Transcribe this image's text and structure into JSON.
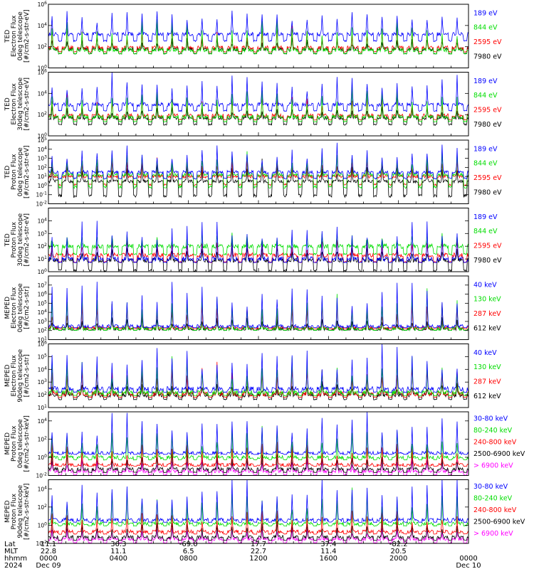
{
  "chart_data": [
    {
      "type": "line",
      "ylabel": [
        "TED",
        "Electron Flux",
        "0deg telescope",
        "[#/cm2-s-str-eV]"
      ],
      "ylim": [
        1,
        1000000
      ],
      "yscale": "log",
      "ytick_labels": [
        "10^0",
        "10^2",
        "10^4",
        "10^6"
      ],
      "series": [
        {
          "name": "7980 eV",
          "color": "#000000",
          "base": 60,
          "peak": 600,
          "floor": 20
        },
        {
          "name": "2595 eV",
          "color": "#ff0000",
          "base": 80,
          "peak": 5000,
          "floor": 30
        },
        {
          "name": "844 eV",
          "color": "#00dd00",
          "base": 50,
          "peak": 20000,
          "floor": 20
        },
        {
          "name": "189 eV",
          "color": "#0000ff",
          "base": 1500,
          "peak": 300000,
          "floor": 300
        }
      ]
    },
    {
      "type": "line",
      "ylabel": [
        "TED",
        "Electron Flux",
        "30deg telescope",
        "[#/cm2-s-str-eV]"
      ],
      "ylim": [
        1,
        1000000
      ],
      "yscale": "log",
      "ytick_labels": [
        "10^0",
        "10^2",
        "10^4",
        "10^6"
      ],
      "series": [
        {
          "name": "7980 eV",
          "color": "#000000",
          "base": 50,
          "peak": 500,
          "floor": 10
        },
        {
          "name": "2595 eV",
          "color": "#ff0000",
          "base": 80,
          "peak": 5000,
          "floor": 30
        },
        {
          "name": "844 eV",
          "color": "#00dd00",
          "base": 60,
          "peak": 20000,
          "floor": 20
        },
        {
          "name": "189 eV",
          "color": "#0000ff",
          "base": 900,
          "peak": 300000,
          "floor": 200
        }
      ]
    },
    {
      "type": "line",
      "ylabel": [
        "TED",
        "Proton Flux",
        "0deg telescope",
        "[#/cm2-s-str-eV]"
      ],
      "ylim": [
        0.01,
        100000
      ],
      "yscale": "log",
      "ytick_labels": [
        "10^-2",
        "10^-1",
        "10^0",
        "10^1",
        "10^2",
        "10^3",
        "10^4",
        "10^5"
      ],
      "series": [
        {
          "name": "7980 eV",
          "color": "#000000",
          "base": 3,
          "peak": 300,
          "floor": 0.05
        },
        {
          "name": "2595 eV",
          "color": "#ff0000",
          "base": 10,
          "peak": 1000,
          "floor": 1
        },
        {
          "name": "844 eV",
          "color": "#00dd00",
          "base": 15,
          "peak": 3000,
          "floor": 0.5
        },
        {
          "name": "189 eV",
          "color": "#0000ff",
          "base": 30,
          "peak": 20000,
          "floor": 5
        }
      ]
    },
    {
      "type": "line",
      "ylabel": [
        "TED",
        "Proton Flux",
        "30deg telescope",
        "[#/cm2-s-str-eV]"
      ],
      "ylim": [
        1,
        100000
      ],
      "yscale": "log",
      "ytick_labels": [
        "10^0",
        "10^1",
        "10^2",
        "10^3",
        "10^4"
      ],
      "series": [
        {
          "name": "7980 eV",
          "color": "#000000",
          "base": 8,
          "peak": 100,
          "floor": 1
        },
        {
          "name": "2595 eV",
          "color": "#ff0000",
          "base": 20,
          "peak": 300,
          "floor": 5
        },
        {
          "name": "844 eV",
          "color": "#00dd00",
          "base": 100,
          "peak": 1000,
          "floor": 20
        },
        {
          "name": "189 eV",
          "color": "#0000ff",
          "base": 10,
          "peak": 5000,
          "floor": 5
        }
      ]
    },
    {
      "type": "line",
      "ylabel": [
        "MEPED",
        "Electron Flux",
        "0deg telescope",
        "[#/cm2-s-str]"
      ],
      "ylim": [
        10,
        100000000
      ],
      "yscale": "log",
      "ytick_labels": [
        "10^1",
        "10^2",
        "10^3",
        "10^4",
        "10^5",
        "10^6",
        "10^7"
      ],
      "series": [
        {
          "name": "612 keV",
          "color": "#000000",
          "base": 150,
          "peak": 2000,
          "floor": 100
        },
        {
          "name": "287 keV",
          "color": "#ff0000",
          "base": 200,
          "peak": 100000,
          "floor": 150
        },
        {
          "name": "130 keV",
          "color": "#00dd00",
          "base": 150,
          "peak": 1000000,
          "floor": 100
        },
        {
          "name": "40 keV",
          "color": "#0000ff",
          "base": 300,
          "peak": 10000000,
          "floor": 200
        }
      ]
    },
    {
      "type": "line",
      "ylabel": [
        "MEPED",
        "Electron Flux",
        "90deg telescope",
        "[#/cm2-s-str]"
      ],
      "ylim": [
        10,
        1000000
      ],
      "yscale": "log",
      "ytick_labels": [
        "10^1",
        "10^2",
        "10^3",
        "10^4",
        "10^5",
        "10^6"
      ],
      "series": [
        {
          "name": "612 keV",
          "color": "#000000",
          "base": 100,
          "peak": 800,
          "floor": 40
        },
        {
          "name": "287 keV",
          "color": "#ff0000",
          "base": 120,
          "peak": 20000,
          "floor": 60
        },
        {
          "name": "130 keV",
          "color": "#00dd00",
          "base": 150,
          "peak": 60000,
          "floor": 80
        },
        {
          "name": "40 keV",
          "color": "#0000ff",
          "base": 300,
          "peak": 300000,
          "floor": 150
        }
      ]
    },
    {
      "type": "line",
      "ylabel": [
        "MEPED",
        "Proton Flux",
        "0deg telescope",
        "[#/cm2-s-str-keV]"
      ],
      "ylim": [
        0.01,
        100000
      ],
      "yscale": "log",
      "ytick_labels": [
        "10^-2",
        "10^0",
        "10^2",
        "10^4"
      ],
      "series": [
        {
          "name": "> 6900 keV",
          "color": "#ff00ff",
          "base": 0.03,
          "peak": 0.5,
          "floor": 0.01
        },
        {
          "name": "2500-6900 keV",
          "color": "#000000",
          "base": 0.05,
          "peak": 3,
          "floor": 0.02
        },
        {
          "name": "240-800 keV",
          "color": "#ff0000",
          "base": 0.15,
          "peak": 30,
          "floor": 0.1
        },
        {
          "name": "80-240 keV",
          "color": "#00dd00",
          "base": 1,
          "peak": 1000,
          "floor": 0.5
        },
        {
          "name": "30-80 keV",
          "color": "#0000ff",
          "base": 3,
          "peak": 50000,
          "floor": 2
        }
      ]
    },
    {
      "type": "line",
      "ylabel": [
        "MEPED",
        "Proton Flux",
        "90deg telescope",
        "[#/cm2-s-str-keV]"
      ],
      "ylim": [
        0.01,
        100000
      ],
      "yscale": "log",
      "ytick_labels": [
        "10^-2",
        "10^0",
        "10^2",
        "10^4"
      ],
      "series": [
        {
          "name": "> 6900 keV",
          "color": "#ff00ff",
          "base": 0.03,
          "peak": 0.5,
          "floor": 0.01
        },
        {
          "name": "2500-6900 keV",
          "color": "#000000",
          "base": 0.05,
          "peak": 3,
          "floor": 0.02
        },
        {
          "name": "240-800 keV",
          "color": "#ff0000",
          "base": 0.2,
          "peak": 30,
          "floor": 0.1
        },
        {
          "name": "80-240 keV",
          "color": "#00dd00",
          "base": 1.5,
          "peak": 3000,
          "floor": 0.8
        },
        {
          "name": "30-80 keV",
          "color": "#0000ff",
          "base": 4,
          "peak": 50000,
          "floor": 2
        }
      ]
    }
  ],
  "x_axis": {
    "row_labels": [
      "Lat",
      "MLT",
      "hhmm",
      "2024"
    ],
    "columns": [
      {
        "lat": "11.1",
        "mlt": "22.8",
        "hhmm": "0000",
        "date": "Dec 09"
      },
      {
        "lat": "36.3",
        "mlt": "11.1",
        "hhmm": "0400",
        "date": ""
      },
      {
        "lat": "-69.0",
        "mlt": "6.5",
        "hhmm": "0800",
        "date": ""
      },
      {
        "lat": "17.7",
        "mlt": "22.7",
        "hhmm": "1200",
        "date": ""
      },
      {
        "lat": "37.4",
        "mlt": "11.4",
        "hhmm": "1600",
        "date": ""
      },
      {
        "lat": "-82.2",
        "mlt": "20.5",
        "hhmm": "2000",
        "date": ""
      },
      {
        "lat": "",
        "mlt": "",
        "hhmm": "0000",
        "date": "Dec 10"
      }
    ],
    "xlim_hours": [
      0,
      24
    ],
    "orbits": 14
  }
}
